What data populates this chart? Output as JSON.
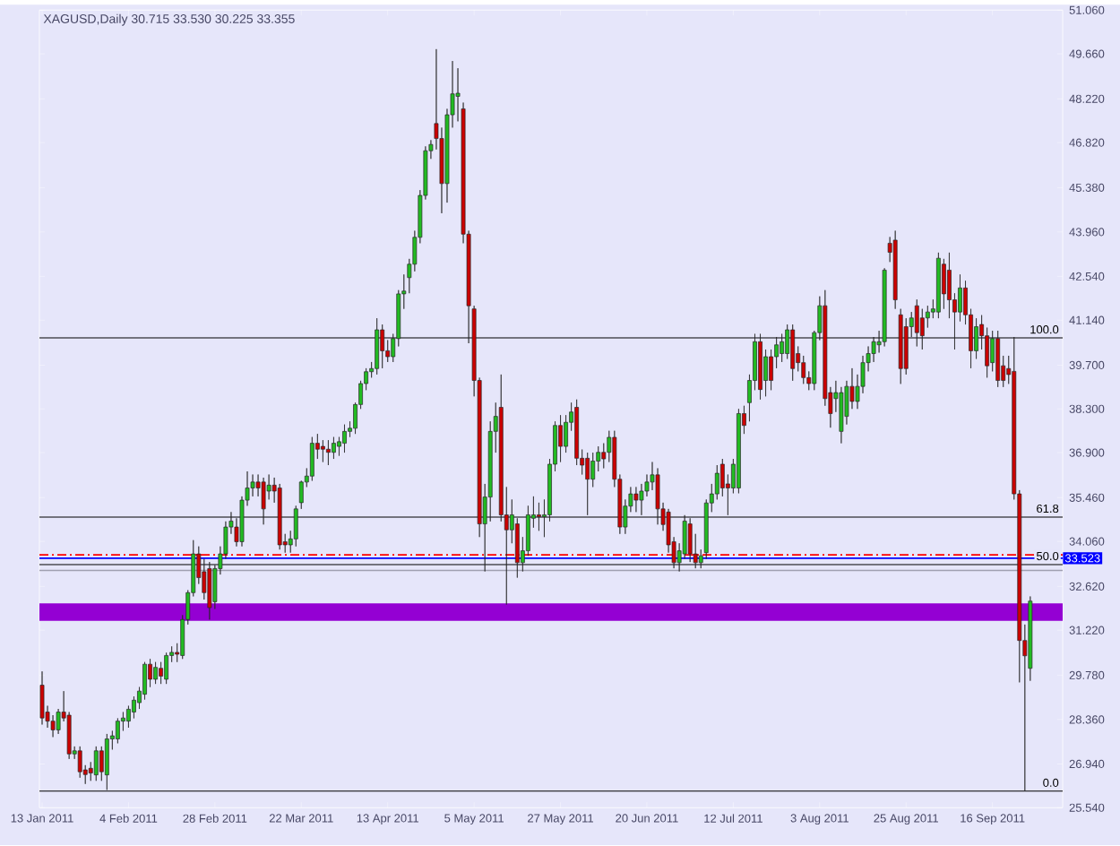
{
  "chart_data": {
    "type": "candlestick",
    "title": "XAGUSD,Daily  30.715 33.530 30.225 33.355",
    "categories": [
      "13 Jan 2011",
      null,
      null,
      null,
      null,
      null,
      null,
      null,
      null,
      null,
      null,
      null,
      null,
      null,
      null,
      null,
      "4 Feb 2011",
      null,
      null,
      null,
      null,
      null,
      null,
      null,
      null,
      null,
      null,
      null,
      null,
      null,
      null,
      null,
      "28 Feb 2011",
      null,
      null,
      null,
      null,
      null,
      null,
      null,
      null,
      null,
      null,
      null,
      null,
      null,
      null,
      null,
      "22 Mar 2011",
      null,
      null,
      null,
      null,
      null,
      null,
      null,
      null,
      null,
      null,
      null,
      null,
      null,
      null,
      null,
      "13 Apr 2011",
      null,
      null,
      null,
      null,
      null,
      null,
      null,
      null,
      null,
      null,
      null,
      null,
      null,
      null,
      null,
      "5 May 2011",
      null,
      null,
      null,
      null,
      null,
      null,
      null,
      null,
      null,
      null,
      null,
      null,
      null,
      null,
      null,
      "27 May 2011",
      null,
      null,
      null,
      null,
      null,
      null,
      null,
      null,
      null,
      null,
      null,
      null,
      null,
      null,
      null,
      "20 Jun 2011",
      null,
      null,
      null,
      null,
      null,
      null,
      null,
      null,
      null,
      null,
      null,
      null,
      null,
      null,
      null,
      "12 Jul 2011",
      null,
      null,
      null,
      null,
      null,
      null,
      null,
      null,
      null,
      null,
      null,
      null,
      null,
      null,
      null,
      "3 Aug 2011",
      null,
      null,
      null,
      null,
      null,
      null,
      null,
      null,
      null,
      null,
      null,
      null,
      null,
      null,
      null,
      "25 Aug 2011",
      null,
      null,
      null,
      null,
      null,
      null,
      null,
      null,
      null,
      null,
      null,
      null,
      null,
      null,
      null,
      "16 Sep 2011",
      null,
      null,
      null,
      null,
      null,
      null,
      null
    ],
    "ohlc": [
      [
        29.46,
        29.9,
        28.2,
        28.41
      ],
      [
        28.6,
        28.8,
        28.1,
        28.31
      ],
      [
        28.31,
        28.5,
        27.8,
        28.03
      ],
      [
        28.03,
        28.7,
        27.9,
        28.6
      ],
      [
        28.6,
        29.27,
        28.3,
        28.41
      ],
      [
        28.5,
        28.6,
        27.1,
        27.26
      ],
      [
        27.26,
        27.5,
        27.1,
        27.36
      ],
      [
        27.36,
        27.5,
        26.5,
        26.69
      ],
      [
        26.75,
        26.9,
        26.3,
        26.6
      ],
      [
        26.8,
        27.0,
        26.4,
        26.65
      ],
      [
        26.59,
        27.5,
        26.4,
        27.36
      ],
      [
        27.36,
        27.5,
        26.4,
        26.69
      ],
      [
        26.59,
        27.9,
        26.11,
        27.74
      ],
      [
        27.74,
        28.0,
        27.4,
        27.84
      ],
      [
        27.74,
        28.4,
        27.6,
        28.31
      ],
      [
        28.31,
        28.6,
        28.0,
        28.41
      ],
      [
        28.31,
        28.8,
        28.1,
        28.69
      ],
      [
        28.6,
        29.1,
        28.4,
        28.98
      ],
      [
        28.9,
        29.4,
        28.7,
        29.27
      ],
      [
        29.17,
        30.2,
        29.0,
        30.13
      ],
      [
        30.13,
        30.3,
        29.4,
        29.65
      ],
      [
        29.65,
        30.2,
        29.5,
        30.03
      ],
      [
        30.0,
        30.2,
        29.5,
        29.75
      ],
      [
        29.65,
        30.5,
        29.5,
        30.41
      ],
      [
        30.41,
        30.7,
        30.2,
        30.51
      ],
      [
        30.51,
        30.8,
        30.2,
        30.45
      ],
      [
        30.41,
        31.7,
        30.3,
        31.56
      ],
      [
        31.56,
        32.5,
        31.4,
        32.42
      ],
      [
        32.42,
        34.1,
        32.3,
        33.66
      ],
      [
        33.66,
        33.9,
        32.7,
        32.9
      ],
      [
        33.09,
        33.5,
        32.2,
        32.42
      ],
      [
        33.19,
        33.4,
        31.56,
        31.94
      ],
      [
        32.13,
        33.3,
        31.9,
        33.19
      ],
      [
        33.19,
        33.9,
        33.0,
        33.66
      ],
      [
        33.66,
        34.7,
        33.5,
        34.52
      ],
      [
        34.52,
        35.0,
        34.3,
        34.71
      ],
      [
        34.52,
        34.8,
        33.9,
        34.05
      ],
      [
        34.05,
        35.5,
        33.9,
        35.38
      ],
      [
        35.38,
        36.3,
        35.2,
        35.77
      ],
      [
        35.77,
        36.2,
        35.5,
        35.96
      ],
      [
        35.96,
        36.2,
        35.5,
        35.77
      ],
      [
        35.96,
        36.1,
        34.6,
        35.1
      ],
      [
        35.67,
        36.2,
        35.4,
        35.86
      ],
      [
        35.86,
        36.1,
        35.3,
        35.67
      ],
      [
        35.77,
        35.9,
        33.8,
        33.95
      ],
      [
        34.05,
        34.3,
        33.7,
        33.95
      ],
      [
        33.95,
        34.4,
        33.7,
        34.14
      ],
      [
        34.14,
        35.2,
        33.9,
        35.1
      ],
      [
        35.3,
        36.0,
        35.1,
        35.96
      ],
      [
        35.96,
        36.4,
        35.8,
        36.15
      ],
      [
        36.15,
        37.4,
        36.0,
        37.2
      ],
      [
        37.2,
        37.5,
        36.7,
        37.01
      ],
      [
        37.1,
        37.3,
        36.6,
        37.01
      ],
      [
        37.01,
        37.3,
        36.5,
        36.91
      ],
      [
        36.91,
        37.4,
        36.7,
        37.2
      ],
      [
        37.1,
        37.4,
        36.8,
        37.25
      ],
      [
        37.2,
        37.8,
        36.9,
        37.58
      ],
      [
        37.58,
        37.9,
        37.4,
        37.68
      ],
      [
        37.68,
        38.5,
        37.5,
        38.44
      ],
      [
        38.44,
        39.2,
        38.3,
        39.11
      ],
      [
        39.11,
        39.6,
        38.9,
        39.49
      ],
      [
        39.49,
        39.8,
        39.3,
        39.59
      ],
      [
        39.59,
        41.2,
        39.4,
        40.83
      ],
      [
        40.83,
        41.0,
        39.6,
        40.16
      ],
      [
        40.16,
        40.5,
        39.8,
        39.97
      ],
      [
        39.97,
        40.7,
        39.8,
        40.55
      ],
      [
        40.55,
        42.1,
        40.3,
        41.98
      ],
      [
        41.98,
        42.6,
        41.5,
        42.07
      ],
      [
        42.5,
        43.1,
        42.0,
        42.93
      ],
      [
        42.93,
        44.0,
        42.7,
        43.79
      ],
      [
        43.79,
        45.3,
        43.6,
        45.13
      ],
      [
        45.13,
        46.7,
        45.0,
        46.56
      ],
      [
        46.56,
        46.9,
        46.3,
        46.76
      ],
      [
        47.43,
        49.81,
        46.6,
        46.95
      ],
      [
        46.95,
        47.3,
        44.56,
        45.51
      ],
      [
        45.51,
        47.9,
        44.9,
        47.71
      ],
      [
        47.71,
        49.43,
        47.3,
        48.38
      ],
      [
        48.3,
        49.2,
        47.5,
        48.4
      ],
      [
        47.9,
        48.1,
        43.6,
        43.89
      ],
      [
        43.89,
        44.0,
        40.4,
        41.6
      ],
      [
        41.5,
        41.6,
        38.7,
        39.21
      ],
      [
        39.21,
        39.3,
        34.2,
        34.62
      ],
      [
        34.62,
        35.9,
        33.1,
        35.48
      ],
      [
        35.48,
        37.9,
        34.7,
        37.58
      ],
      [
        37.58,
        38.5,
        36.9,
        38.06
      ],
      [
        38.35,
        39.4,
        34.7,
        34.91
      ],
      [
        34.91,
        35.8,
        32.04,
        34.43
      ],
      [
        34.43,
        35.4,
        34.0,
        34.91
      ],
      [
        34.62,
        34.8,
        32.9,
        33.38
      ],
      [
        33.38,
        34.2,
        33.1,
        33.76
      ],
      [
        33.76,
        35.2,
        33.6,
        34.91
      ],
      [
        34.8,
        35.5,
        34.5,
        34.91
      ],
      [
        34.91,
        35.3,
        34.4,
        34.85
      ],
      [
        34.85,
        35.4,
        34.2,
        34.91
      ],
      [
        34.91,
        36.7,
        34.7,
        36.53
      ],
      [
        36.53,
        37.9,
        36.3,
        37.77
      ],
      [
        37.77,
        38.1,
        36.6,
        37.1
      ],
      [
        37.1,
        38.1,
        36.9,
        37.87
      ],
      [
        37.87,
        38.5,
        37.6,
        38.2
      ],
      [
        38.35,
        38.6,
        36.5,
        36.72
      ],
      [
        36.72,
        37.0,
        36.2,
        36.5
      ],
      [
        36.72,
        36.9,
        34.9,
        36.05
      ],
      [
        36.05,
        36.9,
        35.8,
        36.63
      ],
      [
        36.63,
        37.1,
        36.3,
        36.91
      ],
      [
        36.91,
        37.2,
        36.4,
        36.7
      ],
      [
        36.91,
        37.6,
        36.6,
        37.39
      ],
      [
        37.39,
        37.6,
        35.8,
        36.05
      ],
      [
        36.05,
        36.2,
        34.3,
        34.52
      ],
      [
        34.52,
        35.4,
        34.3,
        35.19
      ],
      [
        35.19,
        35.8,
        35.0,
        35.58
      ],
      [
        35.58,
        35.8,
        35.0,
        35.38
      ],
      [
        35.38,
        35.9,
        34.9,
        35.67
      ],
      [
        35.67,
        36.2,
        35.5,
        35.96
      ],
      [
        35.96,
        36.6,
        35.7,
        36.19
      ],
      [
        36.19,
        36.4,
        34.6,
        35.1
      ],
      [
        35.1,
        35.3,
        34.4,
        34.6
      ],
      [
        35.0,
        35.1,
        33.7,
        33.95
      ],
      [
        34.05,
        34.2,
        33.2,
        33.38
      ],
      [
        33.38,
        34.0,
        33.1,
        33.76
      ],
      [
        33.66,
        34.9,
        33.5,
        34.71
      ],
      [
        34.62,
        34.8,
        33.4,
        33.66
      ],
      [
        33.66,
        34.3,
        33.2,
        33.38
      ],
      [
        33.38,
        33.8,
        33.2,
        33.6
      ],
      [
        33.7,
        35.4,
        33.5,
        35.29
      ],
      [
        35.29,
        35.9,
        35.0,
        35.58
      ],
      [
        35.58,
        36.5,
        35.4,
        36.24
      ],
      [
        36.53,
        36.7,
        35.5,
        35.77
      ],
      [
        35.9,
        36.2,
        34.9,
        35.77
      ],
      [
        35.77,
        36.7,
        35.6,
        36.53
      ],
      [
        35.77,
        38.3,
        35.6,
        38.15
      ],
      [
        38.15,
        38.4,
        37.5,
        37.77
      ],
      [
        38.5,
        39.4,
        37.9,
        39.21
      ],
      [
        39.21,
        40.7,
        38.9,
        40.45
      ],
      [
        40.45,
        40.7,
        38.6,
        38.92
      ],
      [
        39.21,
        40.2,
        38.7,
        39.97
      ],
      [
        39.97,
        40.2,
        38.9,
        39.21
      ],
      [
        39.97,
        40.6,
        39.6,
        40.35
      ],
      [
        40.07,
        40.7,
        39.8,
        40.45
      ],
      [
        40.07,
        41.0,
        39.9,
        40.83
      ],
      [
        40.83,
        41.0,
        39.2,
        39.59
      ],
      [
        40.07,
        40.3,
        39.5,
        39.78
      ],
      [
        39.78,
        40.0,
        39.1,
        39.3
      ],
      [
        39.3,
        39.5,
        38.9,
        39.11
      ],
      [
        39.11,
        40.8,
        38.9,
        40.74
      ],
      [
        40.74,
        41.9,
        40.5,
        41.6
      ],
      [
        41.6,
        42.1,
        38.4,
        38.63
      ],
      [
        38.82,
        39.0,
        37.7,
        38.15
      ],
      [
        38.63,
        39.2,
        38.2,
        38.82
      ],
      [
        37.58,
        39.0,
        37.2,
        38.82
      ],
      [
        38.06,
        39.2,
        37.8,
        39.02
      ],
      [
        39.02,
        39.6,
        38.3,
        38.54
      ],
      [
        38.54,
        39.4,
        38.3,
        39.02
      ],
      [
        39.02,
        40.0,
        38.8,
        39.78
      ],
      [
        39.78,
        40.3,
        39.5,
        40.07
      ],
      [
        40.07,
        40.6,
        39.8,
        40.45
      ],
      [
        40.35,
        40.8,
        40.1,
        40.45
      ],
      [
        40.45,
        42.8,
        40.3,
        42.74
      ],
      [
        43.6,
        43.8,
        43.0,
        43.31
      ],
      [
        43.7,
        44.0,
        41.5,
        41.79
      ],
      [
        41.31,
        41.5,
        39.1,
        39.59
      ],
      [
        40.93,
        41.2,
        39.4,
        39.59
      ],
      [
        40.93,
        41.4,
        40.6,
        41.21
      ],
      [
        41.6,
        41.8,
        40.3,
        40.74
      ],
      [
        41.21,
        41.5,
        40.2,
        40.64
      ],
      [
        41.21,
        41.6,
        40.9,
        41.4
      ],
      [
        41.4,
        41.8,
        41.2,
        41.5
      ],
      [
        41.4,
        43.3,
        41.2,
        43.12
      ],
      [
        42.93,
        43.1,
        41.5,
        41.98
      ],
      [
        42.74,
        43.3,
        41.2,
        41.79
      ],
      [
        41.79,
        42.0,
        40.2,
        41.4
      ],
      [
        41.4,
        42.6,
        41.1,
        42.17
      ],
      [
        42.17,
        42.4,
        41.0,
        41.31
      ],
      [
        41.31,
        41.5,
        39.6,
        40.16
      ],
      [
        40.16,
        41.2,
        39.9,
        40.93
      ],
      [
        41.0,
        41.3,
        40.2,
        40.64
      ],
      [
        40.64,
        40.9,
        39.3,
        39.68
      ],
      [
        39.78,
        40.8,
        39.5,
        40.55
      ],
      [
        40.55,
        40.8,
        39.0,
        39.21
      ],
      [
        39.68,
        40.0,
        39.0,
        39.21
      ],
      [
        39.59,
        40.0,
        39.1,
        39.4
      ],
      [
        39.5,
        40.6,
        35.4,
        35.58
      ],
      [
        35.58,
        35.7,
        29.55,
        30.89
      ],
      [
        30.89,
        31.4,
        26.07,
        30.4
      ],
      [
        30.0,
        32.3,
        29.6,
        32.15
      ]
    ],
    "ylim": [
      25.54,
      51.06
    ],
    "yticks": [
      {
        "value": 25.54,
        "label": "25.540"
      },
      {
        "value": 26.94,
        "label": "26.940"
      },
      {
        "value": 28.36,
        "label": "28.360"
      },
      {
        "value": 29.78,
        "label": "29.780"
      },
      {
        "value": 31.22,
        "label": "31.220"
      },
      {
        "value": 32.62,
        "label": "32.620"
      },
      {
        "value": 34.06,
        "label": "34.060"
      },
      {
        "value": 35.46,
        "label": "35.460"
      },
      {
        "value": 36.9,
        "label": "36.900"
      },
      {
        "value": 38.3,
        "label": "38.300"
      },
      {
        "value": 39.7,
        "label": "39.700"
      },
      {
        "value": 41.14,
        "label": "41.140"
      },
      {
        "value": 42.54,
        "label": "42.540"
      },
      {
        "value": 43.96,
        "label": "43.960"
      },
      {
        "value": 45.38,
        "label": "45.380"
      },
      {
        "value": 46.82,
        "label": "46.820"
      },
      {
        "value": 48.22,
        "label": "48.220"
      },
      {
        "value": 49.66,
        "label": "49.660"
      },
      {
        "value": 51.06,
        "label": "51.060"
      }
    ],
    "ref_lines": [
      {
        "axis": "y",
        "value": 33.63,
        "color": "#ff0000",
        "line_style": "dashed"
      },
      {
        "axis": "y",
        "value": 33.13,
        "color": "#a0a0b0",
        "line_style": "solid"
      },
      {
        "axis": "y",
        "value": 33.523,
        "label": "33.523",
        "color": "#0000ff",
        "line_style": "solid"
      },
      {
        "axis": "y",
        "value": 40.57,
        "color": "#000000",
        "line_style": "solid"
      },
      {
        "axis": "y",
        "value": 34.84,
        "color": "#000000",
        "line_style": "solid"
      },
      {
        "axis": "y",
        "value": 33.32,
        "color": "#000000",
        "line_style": "solid"
      },
      {
        "axis": "y",
        "value": 26.07,
        "color": "#000000",
        "line_style": "solid"
      }
    ],
    "annotations": [
      {
        "text": "100.0",
        "y": 40.57
      },
      {
        "text": "61.8",
        "y": 34.84
      },
      {
        "text": "50.0",
        "y": 33.32
      },
      {
        "text": "0.0",
        "y": 26.07
      }
    ],
    "bands": [
      {
        "axis": "y",
        "from": 31.52,
        "to": 32.08,
        "color": "#9400d3"
      }
    ],
    "grid": false
  }
}
